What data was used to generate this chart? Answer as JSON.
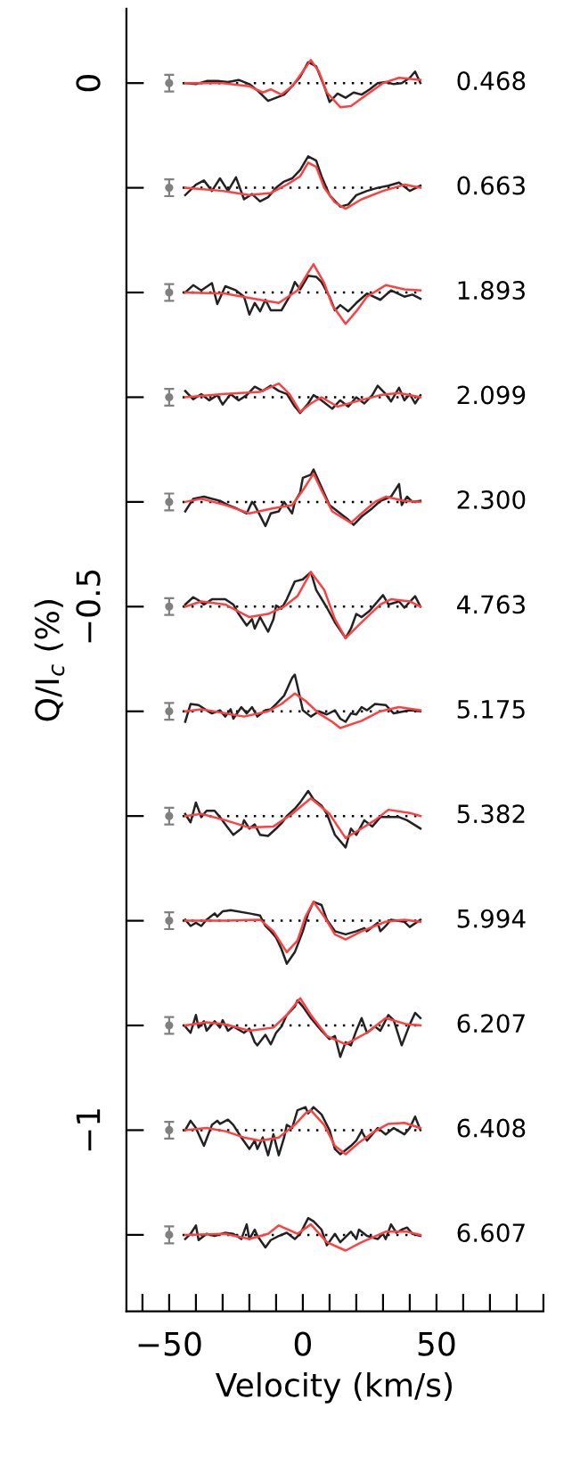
{
  "chart_data": {
    "type": "line",
    "xlabel": "Velocity (km/s)",
    "ylabel": "Q/I$_{c}$ (%)",
    "xlim": [
      -66,
      90
    ],
    "ylim": [
      -1.173,
      0.071
    ],
    "xticks": [
      {
        "value": -60,
        "label": null
      },
      {
        "value": -50,
        "label": "−50"
      },
      {
        "value": -40,
        "label": null
      },
      {
        "value": -30,
        "label": null
      },
      {
        "value": -20,
        "label": null
      },
      {
        "value": -10,
        "label": null
      },
      0,
      {
        "value": 10,
        "label": null
      },
      {
        "value": 20,
        "label": null
      },
      {
        "value": 30,
        "label": null
      },
      {
        "value": 40,
        "label": null
      },
      50,
      {
        "value": 60,
        "label": null
      },
      {
        "value": 70,
        "label": null
      },
      {
        "value": 80,
        "label": null
      },
      {
        "value": 90,
        "label": null
      }
    ],
    "yticks": [
      0,
      {
        "value": -0.1,
        "label": null
      },
      {
        "value": -0.2,
        "label": null
      },
      {
        "value": -0.3,
        "label": null
      },
      {
        "value": -0.4,
        "label": null
      },
      {
        "value": -0.5,
        "label": "−0.5"
      },
      {
        "value": -0.6,
        "label": null
      },
      {
        "value": -0.7,
        "label": null
      },
      {
        "value": -0.8,
        "label": null
      },
      {
        "value": -0.9,
        "label": null
      },
      {
        "value": -1,
        "label": "−1"
      },
      {
        "value": -1.1,
        "label": null
      }
    ],
    "series": [
      {
        "type": "scatter",
        "marker": "circle",
        "color": "#808080",
        "x": [
          -50,
          -50,
          -50,
          -50,
          -50,
          -50,
          -50,
          -50,
          -50,
          -50,
          -50,
          -50
        ],
        "values": [
          0,
          -0.1,
          -0.2,
          -0.3,
          -0.4,
          -0.5,
          -0.6,
          -0.7,
          -0.8,
          -0.9,
          -1.0,
          -1.1
        ],
        "errors": [
          0.008,
          0.008,
          0.008,
          0.008,
          0.008,
          0.008,
          0.008,
          0.008,
          0.008,
          0.008,
          0.008,
          0.008
        ]
      },
      {
        "line_style": "dotted",
        "color": "#000000",
        "x": [
          -45,
          45
        ],
        "values": [
          0,
          0
        ]
      },
      {
        "line_style": "dotted",
        "color": "#000000",
        "x": [
          -45,
          45
        ],
        "values": [
          -0.1,
          -0.1
        ]
      },
      {
        "line_style": "dotted",
        "color": "#000000",
        "x": [
          -45,
          45
        ],
        "values": [
          -0.2,
          -0.2
        ]
      },
      {
        "line_style": "dotted",
        "color": "#000000",
        "x": [
          -45,
          45
        ],
        "values": [
          -0.3,
          -0.3
        ]
      },
      {
        "line_style": "dotted",
        "color": "#000000",
        "x": [
          -45,
          45
        ],
        "values": [
          -0.4,
          -0.4
        ]
      },
      {
        "line_style": "dotted",
        "color": "#000000",
        "x": [
          -45,
          45
        ],
        "values": [
          -0.5,
          -0.5
        ]
      },
      {
        "line_style": "dotted",
        "color": "#000000",
        "x": [
          -45,
          45
        ],
        "values": [
          -0.6,
          -0.6
        ]
      },
      {
        "line_style": "dotted",
        "color": "#000000",
        "x": [
          -45,
          45
        ],
        "values": [
          -0.7,
          -0.7
        ]
      },
      {
        "line_style": "dotted",
        "color": "#000000",
        "x": [
          -45,
          45
        ],
        "values": [
          -0.8,
          -0.8
        ]
      },
      {
        "line_style": "dotted",
        "color": "#000000",
        "x": [
          -45,
          45
        ],
        "values": [
          -0.9,
          -0.9
        ]
      },
      {
        "line_style": "dotted",
        "color": "#000000",
        "x": [
          -45,
          45
        ],
        "values": [
          -1.0,
          -1.0
        ]
      },
      {
        "line_style": "dotted",
        "color": "#000000",
        "x": [
          -45,
          45
        ],
        "values": [
          -1.1,
          -1.1
        ]
      },
      {
        "color": "#222222",
        "x": [
          -44,
          -40,
          -36,
          -32,
          -28,
          -24,
          -20,
          -17,
          -13,
          -10,
          -7,
          -4,
          -1,
          2,
          5,
          8,
          10,
          13,
          16,
          19,
          22,
          25,
          28,
          31,
          34,
          37,
          40,
          42,
          44
        ],
        "values": [
          0,
          -0.001,
          0.002,
          0.002,
          0.001,
          0.003,
          -0.001,
          -0.007,
          -0.017,
          -0.014,
          -0.011,
          -0.003,
          0.006,
          0.02,
          0.016,
          -0.003,
          -0.018,
          -0.01,
          -0.014,
          -0.009,
          -0.011,
          -0.006,
          0,
          0.001,
          -0.001,
          0,
          0.005,
          0.011,
          0
        ]
      },
      {
        "color": "#ff4040",
        "x": [
          -44,
          -30,
          -20,
          -15,
          -12,
          -8,
          -4,
          0,
          3,
          6,
          9,
          14,
          18,
          24,
          30,
          36,
          44
        ],
        "values": [
          0,
          0,
          -0.003,
          -0.009,
          -0.006,
          -0.011,
          -0.003,
          0.011,
          0.022,
          0.011,
          -0.009,
          -0.023,
          -0.022,
          -0.011,
          0,
          0.005,
          0.003
        ]
      },
      {
        "color": "#222222",
        "x": [
          -44,
          -40,
          -37,
          -34,
          -31,
          -28,
          -25,
          -22,
          -19,
          -16,
          -13,
          -10,
          -7,
          -4,
          -1,
          2,
          5,
          7,
          10,
          14,
          17,
          20,
          24,
          28,
          32,
          36,
          40,
          44
        ],
        "values": [
          -0.107,
          -0.097,
          -0.093,
          -0.103,
          -0.091,
          -0.103,
          -0.09,
          -0.111,
          -0.106,
          -0.113,
          -0.109,
          -0.1,
          -0.094,
          -0.091,
          -0.083,
          -0.07,
          -0.074,
          -0.089,
          -0.107,
          -0.118,
          -0.116,
          -0.107,
          -0.103,
          -0.1,
          -0.098,
          -0.095,
          -0.103,
          -0.098
        ]
      },
      {
        "color": "#ff4040",
        "x": [
          -44,
          -30,
          -20,
          -12,
          -6,
          -1,
          2,
          5,
          8,
          12,
          16,
          22,
          30,
          38,
          44
        ],
        "values": [
          -0.1,
          -0.103,
          -0.107,
          -0.105,
          -0.097,
          -0.089,
          -0.076,
          -0.08,
          -0.1,
          -0.114,
          -0.12,
          -0.111,
          -0.103,
          -0.097,
          -0.1
        ]
      },
      {
        "color": "#222222",
        "x": [
          -44,
          -41,
          -38,
          -34,
          -32,
          -29,
          -25,
          -22,
          -20,
          -18,
          -16,
          -14,
          -12,
          -8,
          -5,
          -3,
          -1,
          2,
          5,
          7,
          10,
          12,
          14,
          17,
          20,
          24,
          29,
          33,
          38,
          41,
          44
        ],
        "values": [
          -0.2,
          -0.193,
          -0.198,
          -0.191,
          -0.211,
          -0.194,
          -0.198,
          -0.204,
          -0.221,
          -0.21,
          -0.218,
          -0.207,
          -0.217,
          -0.217,
          -0.204,
          -0.19,
          -0.197,
          -0.184,
          -0.185,
          -0.19,
          -0.204,
          -0.217,
          -0.212,
          -0.218,
          -0.21,
          -0.201,
          -0.207,
          -0.198,
          -0.204,
          -0.202,
          -0.206
        ]
      },
      {
        "color": "#ff4040",
        "x": [
          -44,
          -29,
          -16,
          -9,
          -2,
          2,
          4,
          8,
          11,
          16,
          20,
          24,
          31,
          38,
          44
        ],
        "values": [
          -0.2,
          -0.201,
          -0.207,
          -0.21,
          -0.198,
          -0.181,
          -0.173,
          -0.191,
          -0.212,
          -0.23,
          -0.218,
          -0.204,
          -0.193,
          -0.197,
          -0.198
        ]
      },
      {
        "color": "#222222",
        "x": [
          -44,
          -41,
          -38,
          -35,
          -32,
          -30,
          -27,
          -24,
          -21,
          -18,
          -15,
          -12,
          -9,
          -6,
          -3,
          -1,
          2,
          4,
          7,
          11,
          14,
          17,
          20,
          23,
          26,
          28,
          31,
          33,
          36,
          38,
          40,
          42,
          44
        ],
        "values": [
          -0.294,
          -0.302,
          -0.297,
          -0.303,
          -0.298,
          -0.307,
          -0.297,
          -0.303,
          -0.298,
          -0.29,
          -0.294,
          -0.289,
          -0.294,
          -0.297,
          -0.309,
          -0.315,
          -0.306,
          -0.298,
          -0.303,
          -0.311,
          -0.303,
          -0.309,
          -0.3,
          -0.306,
          -0.298,
          -0.289,
          -0.297,
          -0.304,
          -0.291,
          -0.303,
          -0.297,
          -0.306,
          -0.298
        ]
      },
      {
        "color": "#ff4040",
        "x": [
          -44,
          -30,
          -16,
          -9,
          -5,
          -1,
          3,
          7,
          13,
          20,
          29,
          36,
          44
        ],
        "values": [
          -0.3,
          -0.297,
          -0.295,
          -0.287,
          -0.297,
          -0.314,
          -0.306,
          -0.3,
          -0.309,
          -0.304,
          -0.298,
          -0.296,
          -0.3
        ]
      },
      {
        "color": "#222222",
        "x": [
          -44,
          -41,
          -37,
          -31,
          -28,
          -25,
          -21,
          -19,
          -18,
          -14,
          -12,
          -9,
          -7,
          -4,
          -3,
          -1,
          0,
          3,
          4,
          7,
          10,
          13,
          17,
          19,
          22,
          26,
          29,
          33,
          36,
          37,
          39,
          41,
          44
        ],
        "values": [
          -0.409,
          -0.397,
          -0.395,
          -0.399,
          -0.403,
          -0.406,
          -0.411,
          -0.4,
          -0.403,
          -0.423,
          -0.411,
          -0.409,
          -0.4,
          -0.411,
          -0.4,
          -0.391,
          -0.377,
          -0.374,
          -0.369,
          -0.386,
          -0.403,
          -0.409,
          -0.417,
          -0.422,
          -0.414,
          -0.406,
          -0.399,
          -0.395,
          -0.383,
          -0.403,
          -0.395,
          -0.4,
          -0.399
        ]
      },
      {
        "color": "#ff4040",
        "x": [
          -44,
          -38,
          -29,
          -20,
          -11,
          -4,
          0,
          4,
          7,
          11,
          18,
          22,
          27,
          31,
          38,
          44
        ],
        "values": [
          -0.4,
          -0.397,
          -0.403,
          -0.411,
          -0.406,
          -0.403,
          -0.389,
          -0.373,
          -0.389,
          -0.409,
          -0.42,
          -0.411,
          -0.4,
          -0.395,
          -0.399,
          -0.4
        ]
      },
      {
        "color": "#222222",
        "x": [
          -44,
          -41,
          -39,
          -37,
          -34,
          -29,
          -26,
          -24,
          -21,
          -19,
          -18,
          -16,
          -13,
          -11,
          -10,
          -8,
          -6,
          -3,
          0,
          3,
          5,
          9,
          12,
          16,
          18,
          20,
          22,
          25,
          30,
          32,
          36,
          38,
          42,
          44
        ],
        "values": [
          -0.498,
          -0.491,
          -0.494,
          -0.498,
          -0.493,
          -0.493,
          -0.498,
          -0.507,
          -0.518,
          -0.512,
          -0.521,
          -0.51,
          -0.524,
          -0.512,
          -0.499,
          -0.502,
          -0.493,
          -0.476,
          -0.474,
          -0.467,
          -0.484,
          -0.501,
          -0.515,
          -0.53,
          -0.521,
          -0.507,
          -0.51,
          -0.504,
          -0.489,
          -0.498,
          -0.495,
          -0.501,
          -0.49,
          -0.5
        ]
      },
      {
        "color": "#ff4040",
        "x": [
          -44,
          -38,
          -29,
          -20,
          -13,
          -7,
          -2,
          3,
          8,
          12,
          16,
          22,
          29,
          33,
          40,
          44
        ],
        "values": [
          -0.5,
          -0.495,
          -0.498,
          -0.51,
          -0.507,
          -0.5,
          -0.49,
          -0.467,
          -0.484,
          -0.512,
          -0.53,
          -0.515,
          -0.498,
          -0.493,
          -0.495,
          -0.5
        ]
      },
      {
        "color": "#222222",
        "x": [
          -44,
          -42,
          -39,
          -36,
          -34,
          -31,
          -29,
          -27,
          -26,
          -23,
          -21,
          -19,
          -17,
          -14,
          -12,
          -10,
          -7,
          -4,
          -3,
          -2,
          0,
          3,
          6,
          9,
          12,
          14,
          16,
          18,
          20,
          22,
          24,
          27,
          31,
          34,
          40,
          44
        ],
        "values": [
          -0.61,
          -0.593,
          -0.594,
          -0.599,
          -0.602,
          -0.599,
          -0.605,
          -0.598,
          -0.607,
          -0.596,
          -0.602,
          -0.596,
          -0.605,
          -0.599,
          -0.598,
          -0.593,
          -0.585,
          -0.568,
          -0.565,
          -0.576,
          -0.599,
          -0.605,
          -0.6,
          -0.603,
          -0.599,
          -0.607,
          -0.61,
          -0.602,
          -0.603,
          -0.596,
          -0.599,
          -0.593,
          -0.594,
          -0.602,
          -0.599,
          -0.6
        ]
      },
      {
        "color": "#ff4040",
        "x": [
          -44,
          -38,
          -22,
          -13,
          -8,
          -3,
          1,
          6,
          11,
          14,
          22,
          29,
          36,
          44
        ],
        "values": [
          -0.6,
          -0.598,
          -0.605,
          -0.6,
          -0.593,
          -0.583,
          -0.59,
          -0.602,
          -0.61,
          -0.616,
          -0.609,
          -0.6,
          -0.596,
          -0.599
        ]
      },
      {
        "color": "#222222",
        "x": [
          -44,
          -42,
          -40,
          -38,
          -36,
          -33,
          -31,
          -29,
          -26,
          -23,
          -22,
          -20,
          -18,
          -16,
          -13,
          -10,
          -8,
          -6,
          -3,
          -1,
          2,
          4,
          7,
          9,
          12,
          16,
          18,
          20,
          23,
          26,
          29,
          36,
          39,
          44
        ],
        "values": [
          -0.698,
          -0.706,
          -0.687,
          -0.701,
          -0.695,
          -0.695,
          -0.701,
          -0.708,
          -0.718,
          -0.712,
          -0.704,
          -0.712,
          -0.708,
          -0.718,
          -0.719,
          -0.712,
          -0.707,
          -0.7,
          -0.693,
          -0.687,
          -0.676,
          -0.684,
          -0.69,
          -0.698,
          -0.718,
          -0.73,
          -0.712,
          -0.718,
          -0.704,
          -0.71,
          -0.701,
          -0.701,
          -0.704,
          -0.712
        ]
      },
      {
        "color": "#ff4040",
        "x": [
          -44,
          -38,
          -29,
          -20,
          -11,
          -4,
          3,
          10,
          16,
          20,
          27,
          32,
          40,
          44
        ],
        "values": [
          -0.7,
          -0.698,
          -0.704,
          -0.711,
          -0.71,
          -0.698,
          -0.683,
          -0.698,
          -0.721,
          -0.715,
          -0.704,
          -0.694,
          -0.697,
          -0.7
        ]
      },
      {
        "color": "#222222",
        "x": [
          -44,
          -42,
          -40,
          -38,
          -36,
          -33,
          -32,
          -30,
          -27,
          -20,
          -16,
          -14,
          -12,
          -10,
          -8,
          -6,
          -3,
          0,
          2,
          4,
          7,
          9,
          12,
          16,
          20,
          23,
          24,
          28,
          29,
          31,
          33,
          38,
          40,
          44
        ],
        "values": [
          -0.799,
          -0.805,
          -0.802,
          -0.805,
          -0.799,
          -0.793,
          -0.796,
          -0.791,
          -0.79,
          -0.793,
          -0.795,
          -0.805,
          -0.81,
          -0.816,
          -0.827,
          -0.841,
          -0.83,
          -0.81,
          -0.793,
          -0.782,
          -0.785,
          -0.799,
          -0.81,
          -0.813,
          -0.81,
          -0.807,
          -0.81,
          -0.802,
          -0.81,
          -0.805,
          -0.799,
          -0.801,
          -0.806,
          -0.799
        ]
      },
      {
        "color": "#ff4040",
        "x": [
          -44,
          -29,
          -16,
          -11,
          -6,
          -2,
          1,
          4,
          8,
          12,
          16,
          22,
          31,
          38,
          44
        ],
        "values": [
          -0.8,
          -0.8,
          -0.799,
          -0.81,
          -0.83,
          -0.819,
          -0.796,
          -0.782,
          -0.796,
          -0.813,
          -0.818,
          -0.81,
          -0.801,
          -0.799,
          -0.801
        ]
      },
      {
        "color": "#222222",
        "x": [
          -44,
          -42,
          -40,
          -39,
          -37,
          -36,
          -33,
          -31,
          -30,
          -28,
          -26,
          -22,
          -20,
          -18,
          -17,
          -14,
          -12,
          -10,
          -8,
          -6,
          -3,
          -2,
          0,
          3,
          7,
          10,
          12,
          14,
          16,
          18,
          20,
          22,
          24,
          27,
          29,
          32,
          34,
          37,
          40,
          42,
          44
        ],
        "values": [
          -0.901,
          -0.907,
          -0.89,
          -0.902,
          -0.896,
          -0.905,
          -0.896,
          -0.902,
          -0.895,
          -0.905,
          -0.901,
          -0.907,
          -0.903,
          -0.916,
          -0.919,
          -0.909,
          -0.918,
          -0.907,
          -0.901,
          -0.89,
          -0.882,
          -0.876,
          -0.882,
          -0.893,
          -0.905,
          -0.913,
          -0.91,
          -0.93,
          -0.916,
          -0.919,
          -0.905,
          -0.893,
          -0.907,
          -0.901,
          -0.905,
          -0.89,
          -0.895,
          -0.919,
          -0.899,
          -0.888,
          -0.893
        ]
      },
      {
        "color": "#ff4040",
        "x": [
          -44,
          -36,
          -29,
          -20,
          -11,
          -6,
          -1,
          3,
          9,
          16,
          24,
          31,
          39,
          44
        ],
        "values": [
          -0.9,
          -0.897,
          -0.899,
          -0.905,
          -0.902,
          -0.89,
          -0.874,
          -0.89,
          -0.91,
          -0.918,
          -0.907,
          -0.893,
          -0.899,
          -0.9
        ]
      },
      {
        "color": "#222222",
        "x": [
          -44,
          -42,
          -40,
          -37,
          -34,
          -32,
          -31,
          -28,
          -26,
          -23,
          -20,
          -18,
          -17,
          -15,
          -13,
          -11,
          -9,
          -7,
          -6,
          -4,
          -2,
          1,
          2,
          4,
          7,
          10,
          12,
          14,
          18,
          20,
          22,
          24,
          28,
          31,
          34,
          38,
          40,
          42,
          44
        ],
        "values": [
          -1.0,
          -0.991,
          -0.998,
          -1.015,
          -0.995,
          -0.991,
          -0.994,
          -0.99,
          -0.995,
          -1.007,
          -1.018,
          -1.01,
          -1.018,
          -1.007,
          -1.024,
          -1.004,
          -1.024,
          -1.007,
          -0.995,
          -0.998,
          -0.981,
          -0.978,
          -0.984,
          -0.978,
          -0.985,
          -1.0,
          -1.018,
          -1.023,
          -1.015,
          -1.01,
          -1.001,
          -1.01,
          -0.998,
          -1.004,
          -0.998,
          -1.004,
          -0.998,
          -0.987,
          -1.0
        ]
      },
      {
        "color": "#ff4040",
        "x": [
          -44,
          -36,
          -29,
          -22,
          -16,
          -9,
          -3,
          1,
          3,
          8,
          12,
          16,
          21,
          27,
          32,
          38,
          44
        ],
        "values": [
          -1.0,
          -0.998,
          -1.001,
          -1.007,
          -1.01,
          -1.007,
          -0.995,
          -0.984,
          -0.981,
          -0.995,
          -1.015,
          -1.023,
          -1.012,
          -1.001,
          -0.994,
          -0.993,
          -0.998
        ]
      },
      {
        "color": "#222222",
        "x": [
          -44,
          -42,
          -40,
          -39,
          -36,
          -33,
          -29,
          -26,
          -23,
          -21,
          -20,
          -18,
          -17,
          -14,
          -12,
          -9,
          -6,
          -3,
          -1,
          2,
          4,
          7,
          9,
          12,
          14,
          18,
          20,
          21,
          24,
          28,
          30,
          31,
          33,
          35,
          37,
          39,
          41,
          44
        ],
        "values": [
          -1.104,
          -1.099,
          -1.091,
          -1.105,
          -1.099,
          -1.101,
          -1.098,
          -1.099,
          -1.104,
          -1.09,
          -1.104,
          -1.095,
          -1.101,
          -1.112,
          -1.105,
          -1.101,
          -1.098,
          -1.104,
          -1.099,
          -1.084,
          -1.087,
          -1.095,
          -1.11,
          -1.099,
          -1.107,
          -1.097,
          -1.104,
          -1.095,
          -1.101,
          -1.104,
          -1.099,
          -1.104,
          -1.09,
          -1.098,
          -1.095,
          -1.093,
          -1.099,
          -1.101
        ]
      },
      {
        "color": "#ff4040",
        "x": [
          -44,
          -29,
          -20,
          -13,
          -9,
          -2,
          3,
          9,
          16,
          22,
          31,
          39,
          44
        ],
        "values": [
          -1.1,
          -1.099,
          -1.104,
          -1.099,
          -1.091,
          -1.099,
          -1.09,
          -1.107,
          -1.115,
          -1.107,
          -1.097,
          -1.097,
          -1.1
        ]
      }
    ],
    "annotations": [
      "0.468",
      "0.663",
      "1.893",
      "2.099",
      "2.300",
      "4.763",
      "5.175",
      "5.382",
      "5.994",
      "6.207",
      "6.408",
      "6.607"
    ]
  }
}
